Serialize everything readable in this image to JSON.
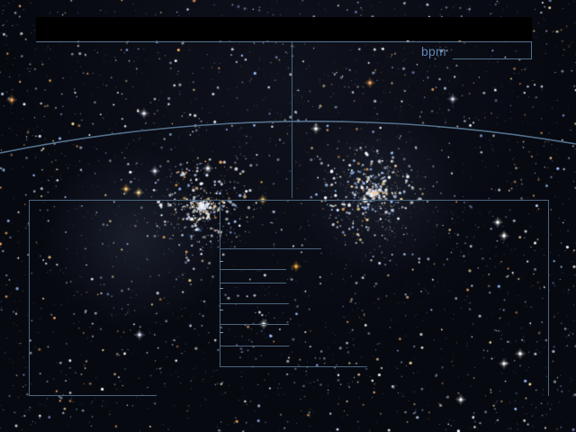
{
  "app": {
    "title": ""
  },
  "overlay": {
    "bpm_label": "bpm",
    "colors": {
      "line": "#4a6680",
      "label": "#5f86b3",
      "top_bar": "#000000"
    }
  },
  "scene": {
    "background": "starfield",
    "star_colors": [
      "#ffffff",
      "#cfe0ff",
      "#9fc0ff",
      "#ffe0a0",
      "#ffb060"
    ]
  }
}
